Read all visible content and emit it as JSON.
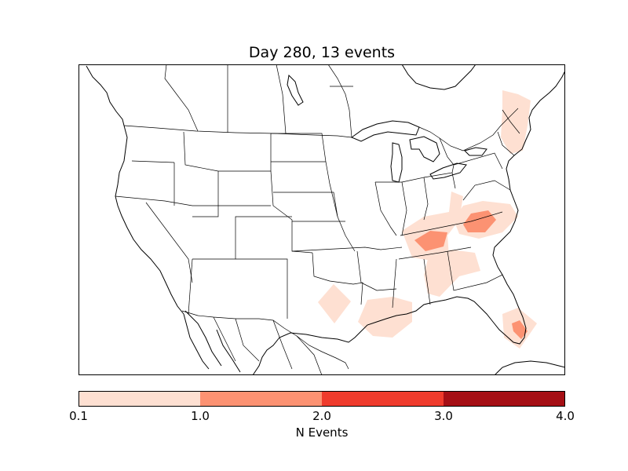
{
  "title": "Day 280, 13 events",
  "colorbar": {
    "label": "N Events",
    "ticks": [
      "0.1",
      "1.0",
      "2.0",
      "3.0",
      "4.0"
    ],
    "bins": [
      {
        "range": "0.1-1.0",
        "color": "#fee0d2"
      },
      {
        "range": "1.0-2.0",
        "color": "#fc9272"
      },
      {
        "range": "2.0-3.0",
        "color": "#ef3b2c"
      },
      {
        "range": "3.0-4.0",
        "color": "#a50f15"
      }
    ]
  },
  "colors": {
    "light": "#fee0d2",
    "medium": "#fc9272",
    "border": "#000000"
  }
}
